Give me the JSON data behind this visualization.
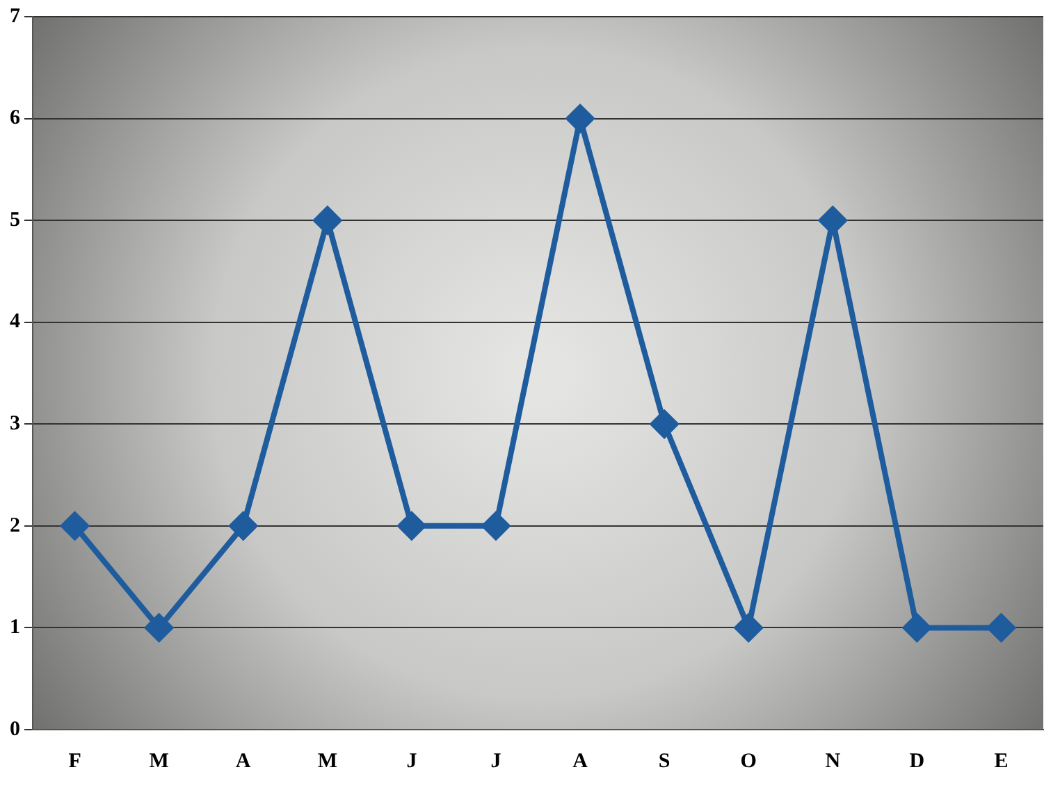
{
  "chart_data": {
    "type": "line",
    "categories": [
      "F",
      "M",
      "A",
      "M",
      "J",
      "J",
      "A",
      "S",
      "O",
      "N",
      "D",
      "E"
    ],
    "series": [
      {
        "color": "#1f5c9e",
        "values": [
          2,
          1,
          2,
          5,
          2,
          2,
          6,
          3,
          1,
          5,
          1,
          1
        ]
      }
    ],
    "ylim": [
      0,
      7
    ],
    "yticks": [
      0,
      1,
      2,
      3,
      4,
      5,
      6,
      7
    ],
    "grid": "y",
    "legend": false,
    "marker": "diamond",
    "line_style": "solid"
  }
}
